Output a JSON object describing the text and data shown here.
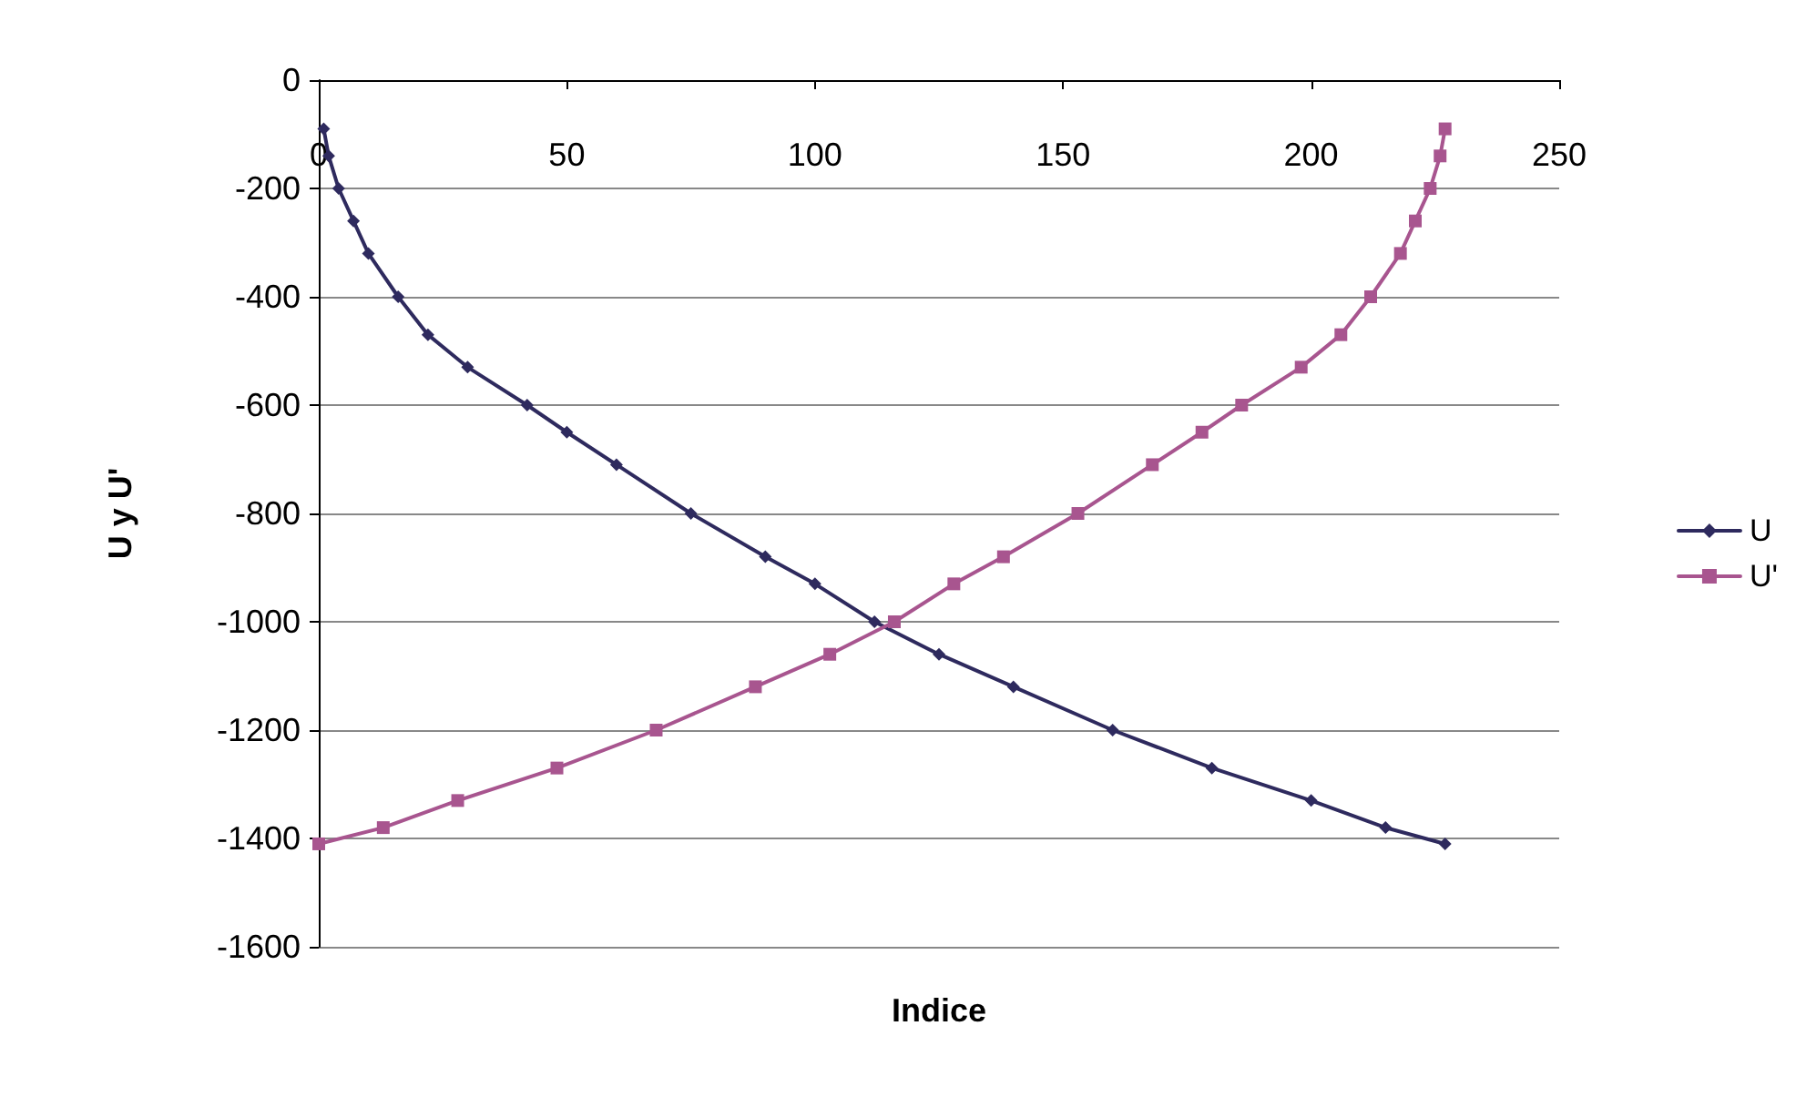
{
  "chart_data": {
    "type": "line",
    "xlabel": "Indice",
    "ylabel": "U y U'",
    "xlim": [
      0,
      250
    ],
    "xticks": [
      0,
      50,
      100,
      150,
      200,
      250
    ],
    "ylim": [
      -1600,
      0
    ],
    "yticks": [
      -1600,
      -1400,
      -1200,
      -1000,
      -800,
      -600,
      -400,
      -200,
      0
    ],
    "grid": "y",
    "legend": "right",
    "line_style": "solid",
    "series": [
      {
        "name": "U",
        "color": "#2e2a5e",
        "marker": "diamond",
        "x": [
          1,
          2,
          4,
          7,
          10,
          16,
          22,
          30,
          42,
          50,
          60,
          75,
          90,
          100,
          112,
          125,
          140,
          160,
          180,
          200,
          215,
          227
        ],
        "values": [
          -90,
          -140,
          -200,
          -260,
          -320,
          -400,
          -470,
          -530,
          -600,
          -650,
          -710,
          -800,
          -880,
          -930,
          -1000,
          -1060,
          -1120,
          -1200,
          -1270,
          -1330,
          -1380,
          -1410
        ]
      },
      {
        "name": "U'",
        "color": "#a8558f",
        "marker": "square",
        "x": [
          0,
          13,
          28,
          48,
          68,
          88,
          103,
          116,
          128,
          138,
          153,
          168,
          178,
          186,
          198,
          206,
          212,
          218,
          221,
          224,
          226,
          227
        ],
        "values": [
          -1410,
          -1380,
          -1330,
          -1270,
          -1200,
          -1120,
          -1060,
          -1000,
          -930,
          -880,
          -800,
          -710,
          -650,
          -600,
          -530,
          -470,
          -400,
          -320,
          -260,
          -200,
          -140,
          -90
        ]
      }
    ]
  }
}
